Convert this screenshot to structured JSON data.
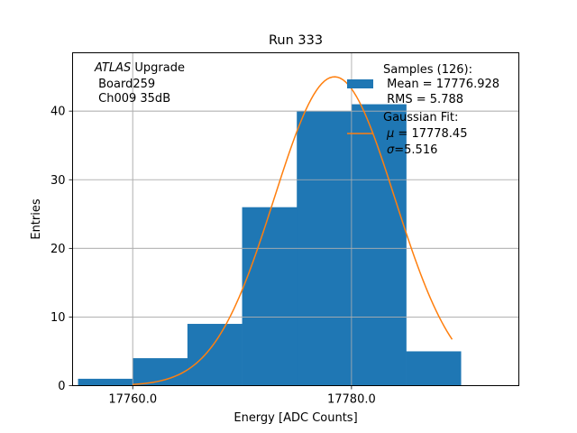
{
  "chart_data": {
    "type": "bar",
    "title": "Run 333",
    "xlabel": "Energy [ADC Counts]",
    "ylabel": "Entries",
    "xlim": [
      17754.5,
      17795.3
    ],
    "ylim": [
      0,
      48.5
    ],
    "x_ticks": [
      17760.0,
      17780.0
    ],
    "x_tick_labels": [
      "17760.0",
      "17780.0"
    ],
    "y_ticks": [
      0,
      10,
      20,
      30,
      40
    ],
    "y_tick_labels": [
      "0",
      "10",
      "20",
      "30",
      "40"
    ],
    "grid": true,
    "bins": [
      {
        "x0": 17755.0,
        "x1": 17760.0,
        "count": 1
      },
      {
        "x0": 17760.0,
        "x1": 17765.0,
        "count": 4
      },
      {
        "x0": 17765.0,
        "x1": 17770.0,
        "count": 9
      },
      {
        "x0": 17770.0,
        "x1": 17775.0,
        "count": 26
      },
      {
        "x0": 17775.0,
        "x1": 17780.0,
        "count": 40
      },
      {
        "x0": 17780.0,
        "x1": 17785.0,
        "count": 41
      },
      {
        "x0": 17785.0,
        "x1": 17790.0,
        "count": 5
      }
    ],
    "fit": {
      "type": "gaussian",
      "mu": 17778.45,
      "sigma": 5.516,
      "amplitude": 45,
      "x_range": [
        17760.0,
        17789.2
      ]
    },
    "colors": {
      "histogram": "#1f77b4",
      "fit": "#ff7f0e",
      "grid": "#b0b0b0"
    },
    "annotation": {
      "italic": "ATLAS",
      "line1_rest": " Upgrade",
      "line2": " Board259",
      "line3": " Ch009 35dB"
    },
    "legend": {
      "placement": "top-right",
      "hist_title": "Samples (126):",
      "hist_mean": " Mean = 17776.928",
      "hist_rms": " RMS = 5.788",
      "fit_title": "Gaussian Fit:",
      "fit_mu_sym": "μ",
      "fit_mu_val": " = 17778.45",
      "fit_sigma_sym": "σ",
      "fit_sigma_val": "=5.516"
    }
  }
}
